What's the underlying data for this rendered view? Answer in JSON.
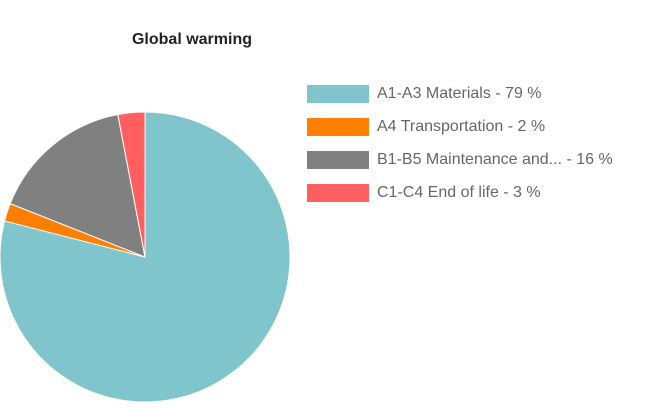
{
  "chart_data": {
    "type": "pie",
    "title": "Global warming",
    "slices": [
      {
        "name": "A1-A3 Materials",
        "value": 79,
        "color": "#80c4cc",
        "legend_label": "A1-A3 Materials - 79 %"
      },
      {
        "name": "A4 Transportation",
        "value": 2,
        "color": "#ff7f00",
        "legend_label": "A4 Transportation - 2 %"
      },
      {
        "name": "B1-B5 Maintenance and...",
        "value": 16,
        "color": "#808080",
        "legend_label": "B1-B5 Maintenance and... - 16 %"
      },
      {
        "name": "C1-C4 End of life",
        "value": 3,
        "color": "#ff5f5f",
        "legend_label": "C1-C4 End of life - 3 %"
      }
    ],
    "legend_position": "right"
  }
}
